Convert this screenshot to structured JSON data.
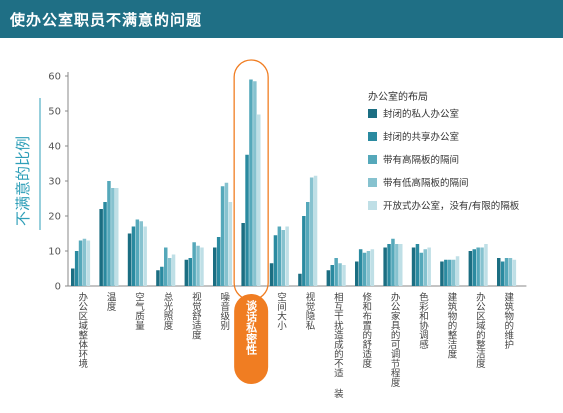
{
  "header": {
    "title": "使办公室职员不满意的问题"
  },
  "colors": {
    "header_bg": "#1f6f85",
    "highlight": "#f07d22",
    "series": [
      "#1b6e82",
      "#2a8aa0",
      "#55a8ba",
      "#86c2cf",
      "#bfdfe6"
    ]
  },
  "chart_data": {
    "type": "bar",
    "ylabel": "不满意的比例",
    "ylim": [
      0,
      60
    ],
    "yticks": [
      0,
      10,
      20,
      30,
      40,
      50,
      60
    ],
    "legend": {
      "title": "办公室的布局",
      "placement": "right",
      "items": [
        "封闭的私人办公室",
        "封闭的共享办公室",
        "带有高隔板的隔间",
        "带有低高隔板的隔间",
        "开放式办公室，没有/有限的隔板"
      ]
    },
    "highlight_category": "谈话私密性",
    "categories": [
      "办公区域整体环境",
      "温度",
      "空气质量",
      "总光照度",
      "视觉舒适度",
      "噪音级别",
      "谈话私密性",
      "空间大小",
      "视觉隐私",
      "相互干扰造成的不适 装",
      "修和布置的舒适度",
      "办公家具的可调节程度",
      "色彩和协调感",
      "建筑物的整洁度",
      "办公区域的整洁度",
      "建筑物的维护"
    ],
    "series": [
      {
        "name": "封闭的私人办公室",
        "values": [
          5,
          22,
          15,
          4.5,
          7.5,
          11,
          18,
          6.5,
          3.5,
          4.5,
          7,
          11,
          11,
          7,
          10,
          8
        ]
      },
      {
        "name": "封闭的共享办公室",
        "values": [
          10,
          24,
          17,
          5.5,
          8,
          14,
          37.5,
          14.5,
          20,
          6,
          10.5,
          12,
          12,
          7.5,
          10.5,
          7
        ]
      },
      {
        "name": "带有高隔板的隔间",
        "values": [
          13,
          30,
          19,
          11,
          12.5,
          28.5,
          59,
          17,
          24,
          8,
          9.5,
          13.5,
          9.5,
          7.5,
          11,
          8
        ]
      },
      {
        "name": "带有低高隔板的隔间",
        "values": [
          13.5,
          28,
          18.5,
          8,
          11.5,
          29.5,
          58.5,
          16,
          31,
          6.5,
          10,
          12,
          10.5,
          7.5,
          11,
          8
        ]
      },
      {
        "name": "开放式办公室，没有/有限的隔板",
        "values": [
          13,
          28,
          17,
          9,
          11,
          24,
          49,
          17,
          31.5,
          6,
          10.5,
          12,
          11,
          8.5,
          12,
          7.5
        ]
      }
    ]
  }
}
